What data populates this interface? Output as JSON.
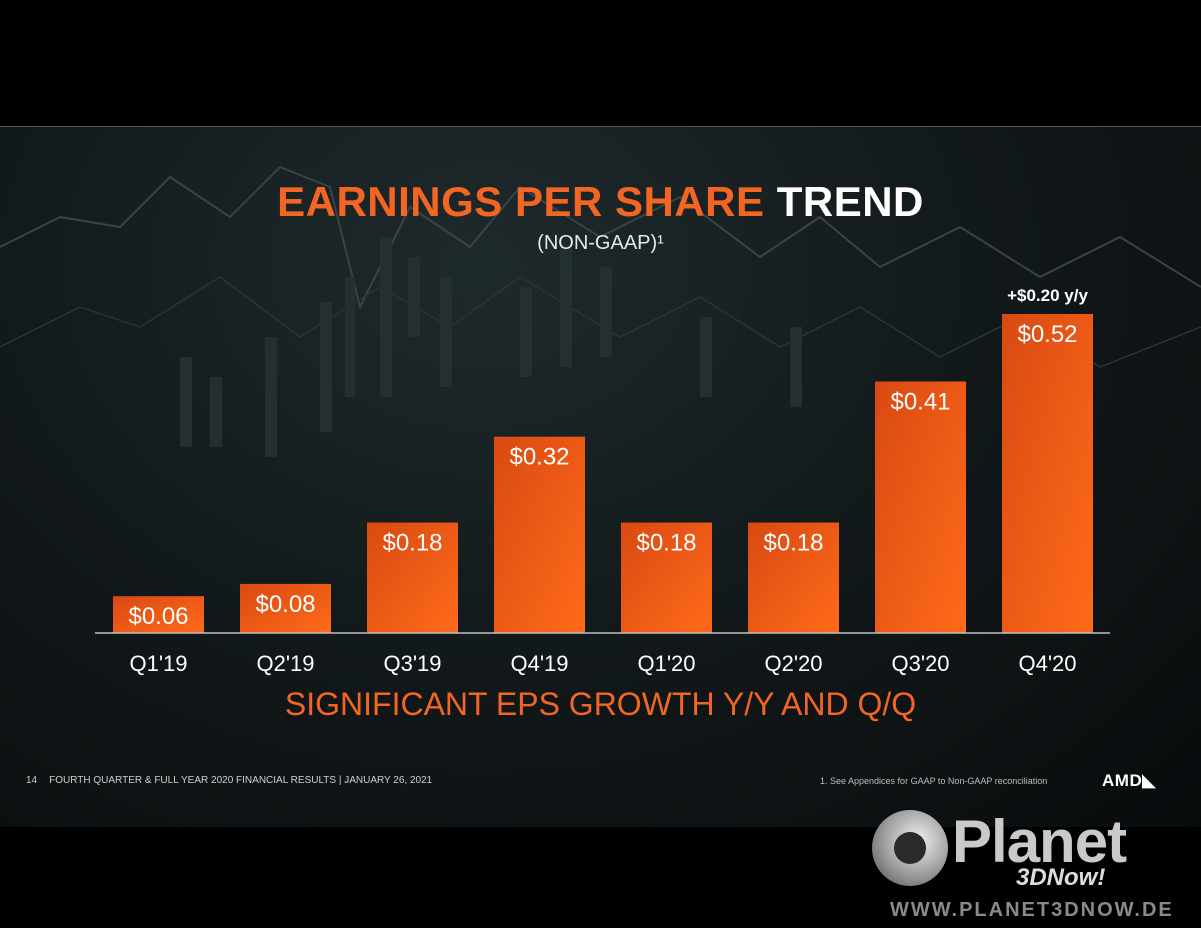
{
  "slide": {
    "title_accent": "EARNINGS PER SHARE",
    "title_rest": "TREND",
    "subtitle": "(NON-GAAP)¹",
    "tagline": "SIGNIFICANT EPS GROWTH Y/Y AND Q/Q",
    "page_number": "14",
    "footer_text": "FOURTH QUARTER & FULL YEAR 2020 FINANCIAL RESULTS   |   JANUARY 26, 2021",
    "footnote": "1.  See Appendices for GAAP to Non-GAAP reconciliation",
    "brand": "AMD◣"
  },
  "watermark": {
    "name": "Planet",
    "sub": "3DNow!",
    "url": "WWW.PLANET3DNOW.DE"
  },
  "colors": {
    "accent": "#f26522",
    "bar_top": "#d94a12",
    "bar_bottom": "#ff6a1a"
  },
  "chart_data": {
    "type": "bar",
    "categories": [
      "Q1'19",
      "Q2'19",
      "Q3'19",
      "Q4'19",
      "Q1'20",
      "Q2'20",
      "Q3'20",
      "Q4'20"
    ],
    "values": [
      0.06,
      0.08,
      0.18,
      0.32,
      0.18,
      0.18,
      0.41,
      0.52
    ],
    "data_labels": [
      "$0.06",
      "$0.08",
      "$0.18",
      "$0.32",
      "$0.18",
      "$0.18",
      "$0.41",
      "$0.52"
    ],
    "annotation": {
      "category": "Q4'20",
      "text": "+$0.20 y/y"
    },
    "title": "EARNINGS PER SHARE TREND",
    "subtitle": "(NON-GAAP)¹",
    "ylim": [
      0,
      0.52
    ],
    "grid": false,
    "legend": "none"
  }
}
